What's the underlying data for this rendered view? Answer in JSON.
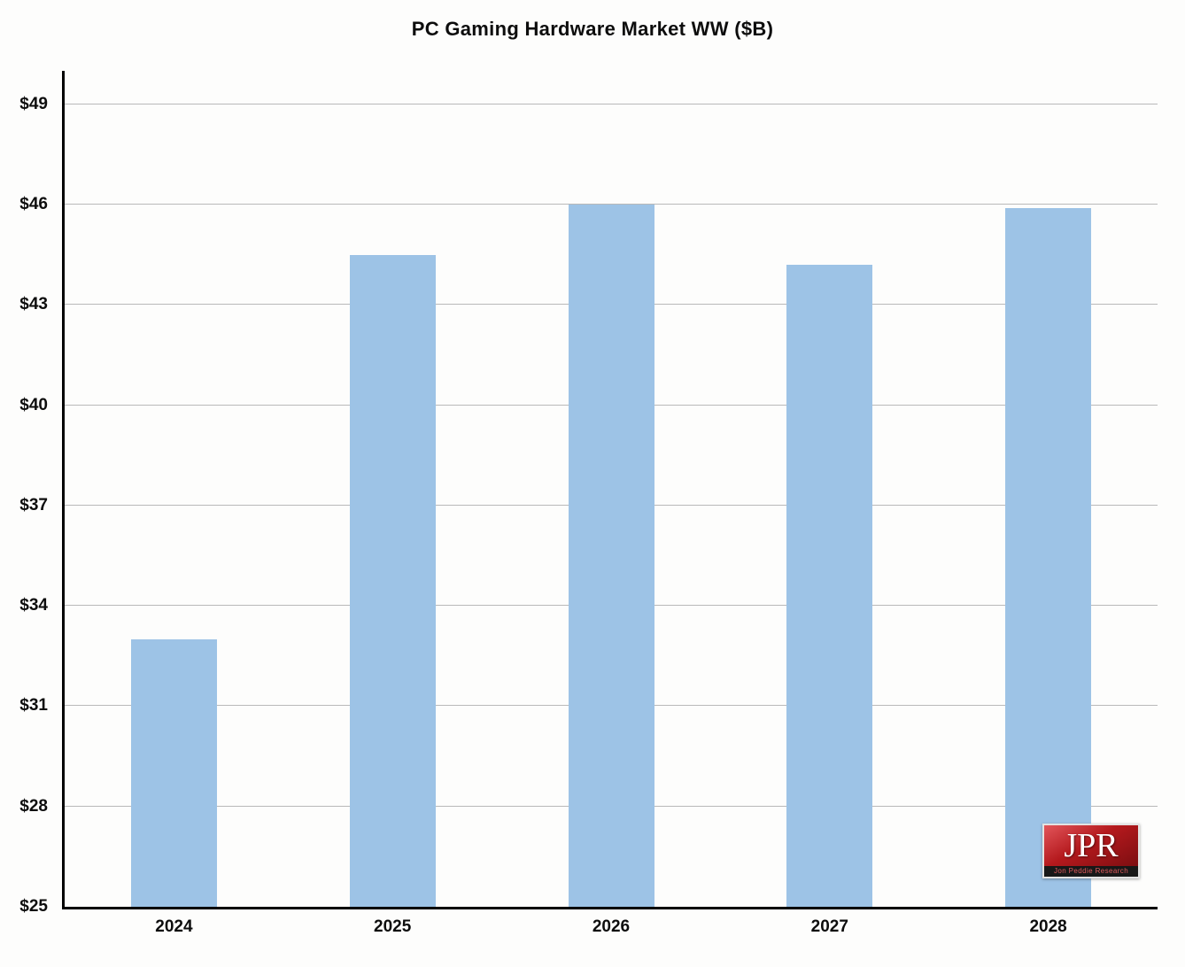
{
  "title": "PC Gaming  Hardware Market WW ($B)",
  "logo": {
    "text": "JPR",
    "subtext": "Jon Peddie Research",
    "bg_color": "#b4191d",
    "strip_color": "#181818",
    "text_color": "#ffffff"
  },
  "chart_data": {
    "type": "bar",
    "title": "PC Gaming  Hardware Market WW ($B)",
    "categories": [
      "2024",
      "2025",
      "2026",
      "2027",
      "2028"
    ],
    "values": [
      33.0,
      44.5,
      46.0,
      44.2,
      45.9
    ],
    "xlabel": "",
    "ylabel": "",
    "ylim": [
      25,
      50
    ],
    "yticks": [
      25,
      28,
      31,
      34,
      37,
      40,
      43,
      46,
      49
    ],
    "ytick_labels": [
      "$25",
      "$28",
      "$31",
      "$34",
      "$37",
      "$40",
      "$43",
      "$46",
      "$49"
    ],
    "bar_color": "#9dc3e6",
    "gridline_color": "#b9b9b9",
    "grid": true,
    "legend_position": "none"
  }
}
